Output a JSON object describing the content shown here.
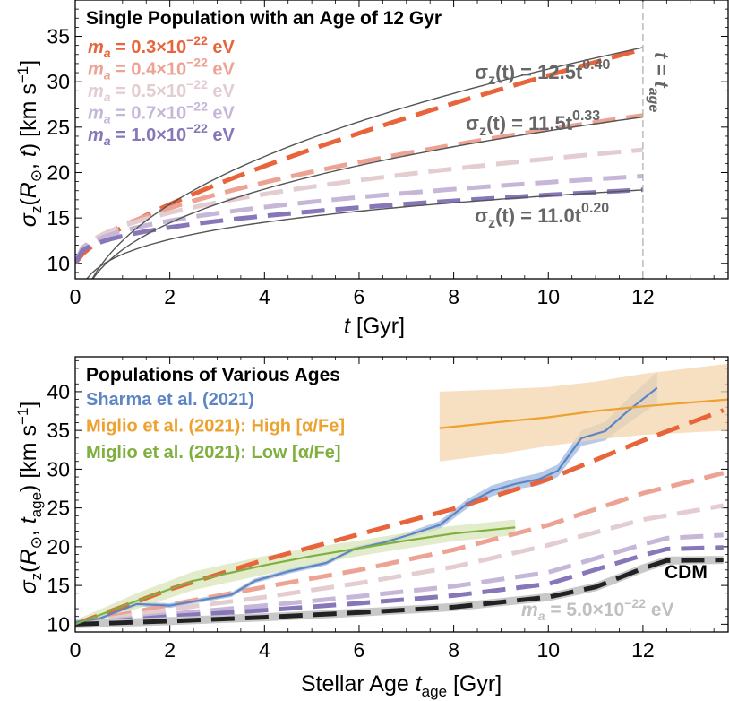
{
  "chart_data": [
    {
      "type": "line",
      "title": "Single Population with an Age of 12 Gyr",
      "xlabel": "t [Gyr]",
      "ylabel": "σz(R⊙, t) [km s⁻¹]",
      "xlim": [
        0,
        13.8
      ],
      "ylim": [
        8.3,
        39
      ],
      "xticks": [
        0,
        2,
        4,
        6,
        8,
        10,
        12
      ],
      "yticks": [
        10,
        15,
        20,
        25,
        30,
        35
      ],
      "age_line": {
        "x": 12,
        "label": "t = t_age"
      },
      "series": [
        {
          "name": "ma = 0.3×10⁻²² eV",
          "color": "#e8643a",
          "dashed": true,
          "sigma0": 10,
          "final": 33.6,
          "x_end": 12,
          "opacity": 1.0
        },
        {
          "name": "ma = 0.4×10⁻²² eV",
          "color": "#eda393",
          "dashed": true,
          "sigma0": 10,
          "final": 26.3,
          "x_end": 12,
          "opacity": 1.0
        },
        {
          "name": "ma = 0.5×10⁻²² eV",
          "color": "#e3cdd0",
          "dashed": true,
          "sigma0": 10,
          "final": 22.5,
          "x_end": 12,
          "opacity": 1.0
        },
        {
          "name": "ma = 0.7×10⁻²² eV",
          "color": "#c6b6d8",
          "dashed": true,
          "sigma0": 10,
          "final": 19.6,
          "x_end": 12,
          "opacity": 1.0
        },
        {
          "name": "ma = 1.0×10⁻²² eV",
          "color": "#8777b9",
          "dashed": true,
          "sigma0": 10,
          "final": 18.1,
          "x_end": 12,
          "opacity": 1.0
        }
      ],
      "fits": [
        {
          "label": "σz(t) = 12.5t^0.40",
          "a": 12.5,
          "b": 0.4,
          "x_end": 12
        },
        {
          "label": "σz(t) = 11.5t^0.33",
          "a": 11.5,
          "b": 0.33,
          "x_end": 12
        },
        {
          "label": "σz(t) = 11.0t^0.20",
          "a": 11.0,
          "b": 0.2,
          "x_end": 12
        }
      ],
      "legend": [
        {
          "prefix": "m",
          "sub": "a",
          "value": " = 0.3×10",
          "exp": "−22",
          "unit": " eV",
          "color": "#e8643a"
        },
        {
          "prefix": "m",
          "sub": "a",
          "value": " = 0.4×10",
          "exp": "−22",
          "unit": " eV",
          "color": "#eda393"
        },
        {
          "prefix": "m",
          "sub": "a",
          "value": " = 0.5×10",
          "exp": "−22",
          "unit": " eV",
          "color": "#e3cdd0"
        },
        {
          "prefix": "m",
          "sub": "a",
          "value": " = 0.7×10",
          "exp": "−22",
          "unit": " eV",
          "color": "#c6b6d8"
        },
        {
          "prefix": "m",
          "sub": "a",
          "value": " = 1.0×10",
          "exp": "−22",
          "unit": " eV",
          "color": "#8777b9"
        }
      ]
    },
    {
      "type": "line",
      "title": "Populations of Various Ages",
      "xlabel": "Stellar Age t_age [Gyr]",
      "ylabel": "σz(R⊙, t_age) [km s⁻¹]",
      "xlim": [
        0,
        13.8
      ],
      "ylim": [
        9,
        44.5
      ],
      "xticks": [
        0,
        2,
        4,
        6,
        8,
        10,
        12
      ],
      "yticks": [
        10,
        15,
        20,
        25,
        30,
        35,
        40
      ],
      "models": [
        {
          "name": "ma = 0.3×10⁻²² eV",
          "color": "#e8643a",
          "dashed": true,
          "x": [
            0,
            2,
            4,
            6,
            8,
            10,
            12,
            13.7
          ],
          "y": [
            10,
            14.5,
            18.3,
            21.6,
            24.9,
            28.7,
            33.7,
            37.6
          ]
        },
        {
          "name": "ma = 0.4×10⁻²² eV",
          "color": "#eda393",
          "dashed": true,
          "x": [
            0,
            2,
            4,
            6,
            8,
            10,
            12,
            13.7
          ],
          "y": [
            10,
            12.5,
            14.8,
            17.0,
            19.6,
            22.8,
            26.9,
            29.5
          ]
        },
        {
          "name": "ma = 0.5×10⁻²² eV",
          "color": "#e3cdd0",
          "dashed": true,
          "x": [
            0,
            2,
            4,
            6,
            8,
            10,
            12,
            13.7
          ],
          "y": [
            10,
            11.9,
            13.5,
            15.3,
            17.4,
            20.2,
            23.5,
            25.3
          ]
        },
        {
          "name": "ma = 0.7×10⁻²² eV",
          "color": "#c6b6d8",
          "dashed": true,
          "x": [
            0,
            2,
            4,
            6,
            8,
            10,
            12,
            12.5,
            13.7
          ],
          "y": [
            10,
            11.3,
            12.4,
            13.6,
            14.9,
            16.7,
            20.3,
            21.1,
            21.5
          ]
        },
        {
          "name": "ma = 1.0×10⁻²² eV",
          "color": "#8777b9",
          "dashed": true,
          "x": [
            0,
            2,
            4,
            6,
            8,
            10,
            12,
            12.5,
            13.7
          ],
          "y": [
            10,
            11.0,
            11.8,
            12.7,
            13.7,
            15.2,
            18.9,
            19.7,
            19.9
          ]
        },
        {
          "name": "ma = 5.0×10⁻²² eV",
          "color": "#c8c8c8",
          "dashed": false,
          "width": 9,
          "x": [
            0,
            2,
            4,
            6,
            8,
            10,
            11,
            12,
            12.5,
            13.7
          ],
          "y": [
            10,
            10.4,
            10.9,
            11.5,
            12.2,
            13.5,
            14.8,
            17.2,
            18.2,
            18.3
          ]
        },
        {
          "name": "CDM",
          "color": "#222222",
          "dashed": true,
          "x": [
            0,
            2,
            4,
            6,
            8,
            10,
            11,
            12,
            12.5,
            13.7
          ],
          "y": [
            10,
            10.4,
            10.9,
            11.5,
            12.2,
            13.5,
            14.8,
            17.2,
            18.2,
            18.3
          ]
        }
      ],
      "observations": [
        {
          "name": "Sharma et al. (2021)",
          "color": "#5b85c4",
          "band_color": "#9db7dd",
          "x": [
            0,
            0.5,
            1.3,
            2.0,
            3.3,
            3.8,
            4.5,
            5.3,
            5.9,
            6.5,
            7.1,
            7.7,
            8.3,
            8.8,
            9.3,
            9.8,
            10.2,
            10.7,
            11.2,
            11.7,
            12.3
          ],
          "y": [
            10.3,
            10.7,
            12.6,
            12.4,
            13.8,
            15.6,
            16.8,
            17.9,
            19.7,
            20.5,
            21.6,
            22.8,
            25.6,
            27.2,
            28.1,
            28.7,
            29.8,
            34.0,
            34.9,
            37.6,
            40.5
          ],
          "err": [
            0.3,
            0.3,
            0.3,
            0.3,
            0.3,
            0.3,
            0.3,
            0.3,
            0.3,
            0.3,
            0.4,
            0.5,
            0.6,
            0.7,
            0.7,
            0.8,
            0.8,
            1.0,
            1.2,
            1.6,
            2.0
          ]
        },
        {
          "name": "Miglio et al. (2021): High [α/Fe]",
          "color": "#eda230",
          "band_color": "#f4d6ae",
          "x": [
            7.7,
            9,
            10,
            11,
            12,
            13.8
          ],
          "y": [
            35.3,
            36.1,
            36.7,
            37.5,
            38.1,
            39.0
          ],
          "lo": [
            31.0,
            32.0,
            33.0,
            33.8,
            34.4,
            35.0
          ],
          "hi": [
            40.0,
            40.3,
            40.6,
            41.3,
            42.3,
            43.6
          ]
        },
        {
          "name": "Miglio et al. (2021): Low [α/Fe]",
          "color": "#7fb03f",
          "band_color": "#d8e4b8",
          "x": [
            0,
            1.3,
            2.5,
            4,
            5,
            6,
            7,
            8,
            9.3
          ],
          "y": [
            10.0,
            13.0,
            15.6,
            17.6,
            18.8,
            19.8,
            20.8,
            21.7,
            22.5
          ],
          "err": [
            0.5,
            1.0,
            1.2,
            1.2,
            1.1,
            1.0,
            1.0,
            1.0,
            1.0
          ]
        }
      ],
      "legend": [
        {
          "text": "Sharma et al. (2021)",
          "color": "#5b85c4"
        },
        {
          "text": "Miglio et al. (2021): High [α/Fe]",
          "color": "#eda230"
        },
        {
          "text": "Miglio et al. (2021): Low [α/Fe]",
          "color": "#7fb03f"
        }
      ],
      "cdm_label": "CDM",
      "fuzzy_label": {
        "prefix": "m",
        "sub": "a",
        "value": " = 5.0×10",
        "exp": "−22",
        "unit": " eV",
        "color": "#c0c0c0"
      }
    }
  ],
  "colors": {
    "fit_line": "#555555",
    "age_line": "#aaaaaa"
  }
}
